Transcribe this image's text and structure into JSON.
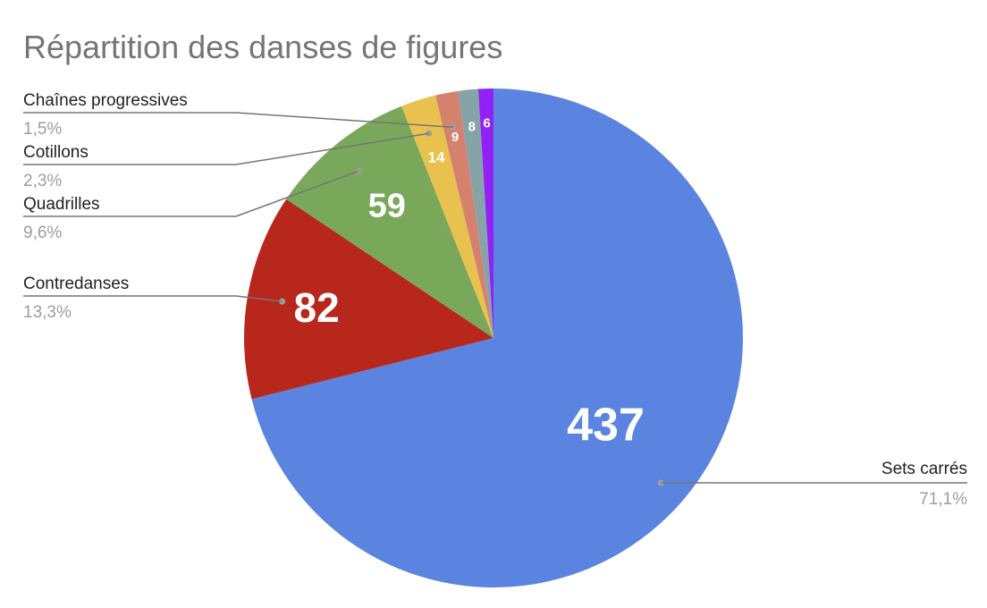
{
  "chart_data": {
    "type": "pie",
    "title": "Répartition des danses de figures",
    "slices": [
      {
        "name": "Sets carrés",
        "value": 437,
        "percent": "71,1%",
        "color": "#5a84e0",
        "label_side": "right"
      },
      {
        "name": "Contredanses",
        "value": 82,
        "percent": "13,3%",
        "color": "#b8271c",
        "label_side": "left"
      },
      {
        "name": "Quadrilles",
        "value": 59,
        "percent": "9,6%",
        "color": "#79a85a",
        "label_side": "left"
      },
      {
        "name": "Cotillons",
        "value": 14,
        "percent": "2,3%",
        "color": "#e8c14f",
        "label_side": "left"
      },
      {
        "name": "Chaînes progressives",
        "value": 9,
        "percent": "1,5%",
        "color": "#d4826e",
        "label_side": "left"
      },
      {
        "name": "",
        "value": 8,
        "percent": "",
        "color": "#86a4a8",
        "label_side": "none"
      },
      {
        "name": "",
        "value": 6,
        "percent": "",
        "color": "#9221f5",
        "label_side": "none"
      }
    ]
  }
}
